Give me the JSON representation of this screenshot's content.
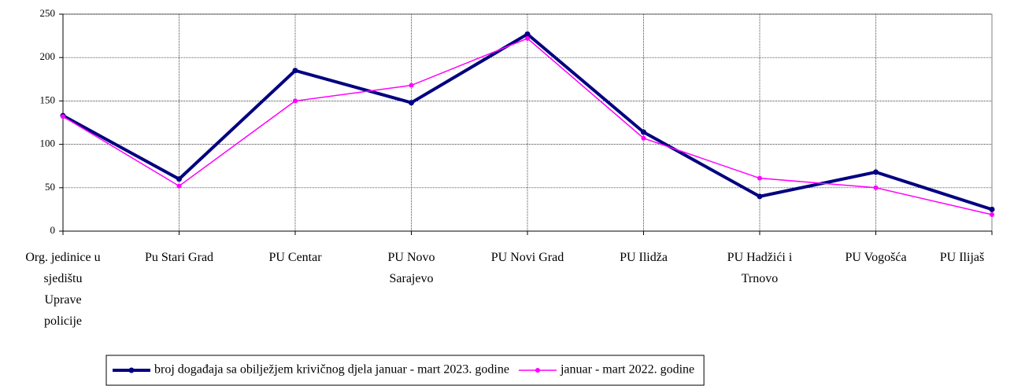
{
  "chart_data": {
    "type": "line",
    "categories": [
      "Org. jedinice u\nsjedištu\nUprave\npolicije",
      "Pu Stari Grad",
      "PU Centar",
      "PU Novo\nSarajevo",
      "PU Novi Grad",
      "PU Ilidža",
      "PU Hadžići i\nTrnovo",
      "PU Vogošća",
      "PU Ilijaš"
    ],
    "series": [
      {
        "name": "broj događaja sa obilježjem krivičnog djela januar - mart 2023. godine",
        "color": "#000080",
        "values": [
          133,
          60,
          185,
          148,
          227,
          114,
          40,
          68,
          25
        ]
      },
      {
        "name": "januar - mart 2022. godine",
        "color": "#ff00ff",
        "values": [
          132,
          52,
          150,
          168,
          222,
          107,
          61,
          50,
          19
        ]
      }
    ],
    "ylim": [
      0,
      250
    ],
    "yticks": [
      0,
      50,
      100,
      150,
      200,
      250
    ],
    "grid": true,
    "legend": "bottom"
  }
}
